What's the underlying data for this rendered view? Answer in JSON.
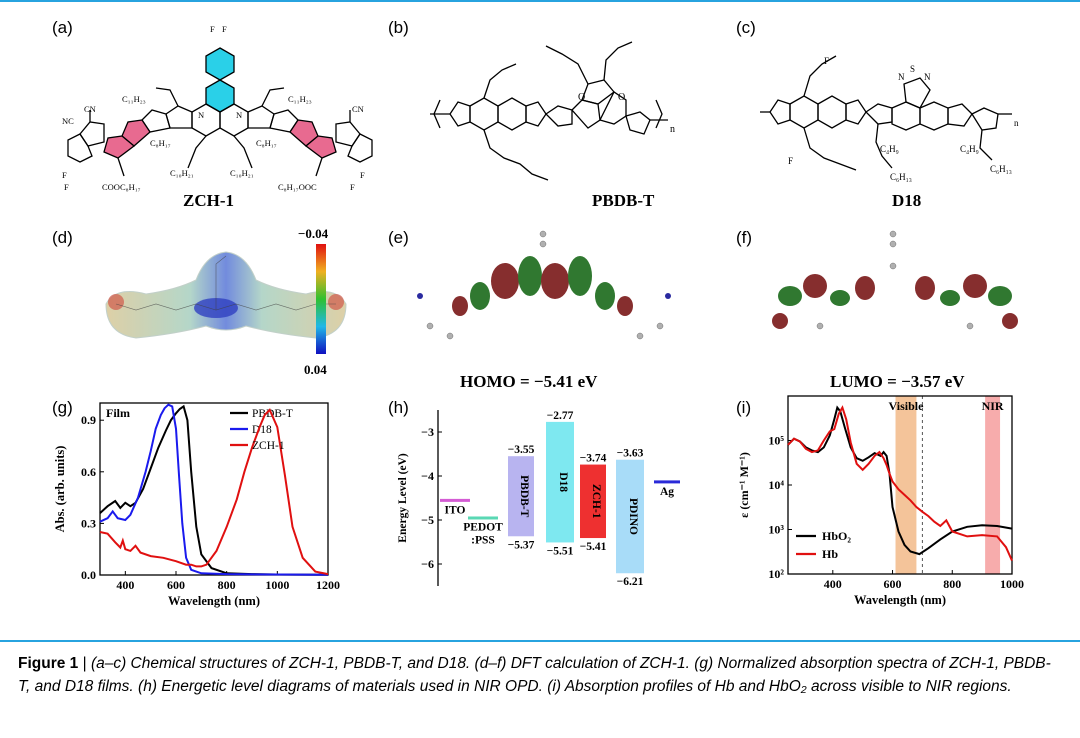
{
  "panels": {
    "a": "(a)",
    "b": "(b)",
    "c": "(c)",
    "d": "(d)",
    "e": "(e)",
    "f": "(f)",
    "g": "(g)",
    "h": "(h)",
    "i": "(i)"
  },
  "structures": {
    "zch1": {
      "name": "ZCH-1",
      "labels": [
        "C11H23",
        "C11H23",
        "C8H17",
        "C10H21",
        "C10H21",
        "C8H17",
        "COOC8H17",
        "C8H17OOC",
        "NC",
        "CN",
        "CN",
        "F",
        "F",
        "F",
        "F",
        "F",
        "F",
        "F",
        "F",
        "O",
        "O",
        "N",
        "N"
      ]
    },
    "pbdbt": {
      "name": "PBDB-T",
      "labels": [
        "n",
        "O",
        "O"
      ]
    },
    "d18": {
      "name": "D18",
      "labels": [
        "n",
        "F",
        "F",
        "C4H9",
        "C6H13",
        "C4H9",
        "C6H13",
        "S",
        "N",
        "N"
      ]
    }
  },
  "dft": {
    "colorbar_top": "−0.04",
    "colorbar_bottom": "0.04",
    "homo_label": "HOMO = −5.41 eV",
    "lumo_label": "LUMO = −3.57 eV"
  },
  "chart_data": [
    {
      "id": "g",
      "type": "line",
      "title": "Film",
      "xlabel": "Wavelength (nm)",
      "ylabel": "Abs. (arb. units)",
      "xlim": [
        300,
        1200
      ],
      "ylim": [
        0.0,
        1.0
      ],
      "xticks": [
        400,
        600,
        800,
        1000,
        1200
      ],
      "yticks": [
        0.0,
        0.3,
        0.6,
        0.9
      ],
      "xtick_labels": [
        "400",
        "600",
        "800",
        "1000",
        "1200"
      ],
      "ytick_labels": [
        "0.0",
        "0.3",
        "0.6",
        "0.9"
      ],
      "legend": "top-right",
      "series": [
        {
          "name": "PBDB-T",
          "color": "#000000",
          "x": [
            300,
            330,
            360,
            380,
            400,
            420,
            440,
            470,
            500,
            530,
            560,
            580,
            600,
            615,
            630,
            645,
            660,
            680,
            700,
            740,
            800,
            900,
            1000,
            1200
          ],
          "y": [
            0.36,
            0.4,
            0.43,
            0.39,
            0.42,
            0.4,
            0.42,
            0.5,
            0.62,
            0.74,
            0.84,
            0.9,
            0.94,
            0.965,
            0.98,
            0.9,
            0.6,
            0.28,
            0.12,
            0.04,
            0.01,
            0.005,
            0.003,
            0.002
          ]
        },
        {
          "name": "D18",
          "color": "#1a1aee",
          "x": [
            300,
            330,
            350,
            370,
            400,
            420,
            450,
            480,
            500,
            520,
            540,
            555,
            570,
            585,
            600,
            612,
            625,
            640,
            660,
            700,
            800,
            1000,
            1200
          ],
          "y": [
            0.31,
            0.33,
            0.37,
            0.33,
            0.32,
            0.35,
            0.45,
            0.6,
            0.72,
            0.85,
            0.93,
            0.97,
            0.99,
            0.98,
            0.85,
            0.58,
            0.3,
            0.1,
            0.03,
            0.01,
            0.005,
            0.003,
            0.002
          ]
        },
        {
          "name": "ZCH-1",
          "color": "#e01010",
          "x": [
            300,
            330,
            360,
            380,
            390,
            400,
            420,
            440,
            460,
            500,
            550,
            600,
            640,
            660,
            680,
            700,
            720,
            760,
            800,
            840,
            870,
            900,
            930,
            950,
            970,
            1000,
            1030,
            1060,
            1100,
            1150,
            1200
          ],
          "y": [
            0.25,
            0.24,
            0.19,
            0.16,
            0.2,
            0.15,
            0.14,
            0.17,
            0.13,
            0.11,
            0.1,
            0.08,
            0.06,
            0.06,
            0.05,
            0.05,
            0.06,
            0.14,
            0.28,
            0.44,
            0.6,
            0.74,
            0.86,
            0.93,
            0.96,
            0.86,
            0.58,
            0.28,
            0.1,
            0.02,
            0.005
          ]
        }
      ]
    },
    {
      "id": "h",
      "type": "bar",
      "ylabel": "Energy Level (eV)",
      "ylim": [
        -6.5,
        -2.5
      ],
      "yticks": [
        -3,
        -4,
        -5,
        -6
      ],
      "ytick_labels": [
        "−3",
        "−4",
        "−5",
        "−6"
      ],
      "levels": [
        {
          "name": "ITO",
          "top": -4.52,
          "bottom": -4.58,
          "color": "#d45cd4",
          "kind": "line",
          "top_label": "",
          "bottom_label": ""
        },
        {
          "name": "PEDOT\n:PSS",
          "top": -4.92,
          "bottom": -4.97,
          "color": "#5ad8b4",
          "kind": "line",
          "top_label": "",
          "bottom_label": ""
        },
        {
          "name": "PBDB-T",
          "top": -3.55,
          "bottom": -5.37,
          "color": "#b8b4f0",
          "kind": "box",
          "top_label": "−3.55",
          "bottom_label": "−5.37"
        },
        {
          "name": "D18",
          "top": -2.77,
          "bottom": -5.51,
          "color": "#7ee8f0",
          "kind": "box",
          "top_label": "−2.77",
          "bottom_label": "−5.51"
        },
        {
          "name": "ZCH-1",
          "top": -3.74,
          "bottom": -5.41,
          "color": "#ee3030",
          "kind": "box",
          "top_label": "−3.74",
          "bottom_label": "−5.41"
        },
        {
          "name": "PDINO",
          "top": -3.63,
          "bottom": -6.21,
          "color": "#a8dcf8",
          "kind": "box",
          "top_label": "−3.63",
          "bottom_label": "−6.21"
        },
        {
          "name": "Ag",
          "top": -4.1,
          "bottom": -4.16,
          "color": "#2a2ad8",
          "kind": "line",
          "top_label": "",
          "bottom_label": ""
        }
      ]
    },
    {
      "id": "i",
      "type": "line",
      "xlabel": "Wavelength (nm)",
      "ylabel": "ε (cm⁻¹ M⁻¹)",
      "xscale": "linear",
      "yscale": "log",
      "xlim": [
        250,
        1000
      ],
      "ylim": [
        100,
        1000000
      ],
      "xticks": [
        400,
        600,
        800,
        1000
      ],
      "xtick_labels": [
        "400",
        "600",
        "800",
        "1000"
      ],
      "yticks": [
        100,
        1000,
        10000,
        100000
      ],
      "ytick_labels": [
        "10²",
        "10³",
        "10⁴",
        "10⁵"
      ],
      "bands": [
        {
          "label": "Visible",
          "from": 610,
          "to": 680,
          "color": "#f0b078"
        },
        {
          "label": "NIR",
          "from": 910,
          "to": 960,
          "color": "#f49090"
        }
      ],
      "dashed_line_x": 700,
      "legend": "bottom-left",
      "series": [
        {
          "name": "HbO₂",
          "color": "#000000",
          "x": [
            250,
            270,
            290,
            310,
            330,
            350,
            370,
            390,
            405,
            415,
            425,
            440,
            460,
            480,
            500,
            520,
            540,
            560,
            570,
            580,
            590,
            600,
            620,
            640,
            660,
            690,
            720,
            760,
            800,
            850,
            900,
            950,
            1000
          ],
          "y": [
            80000,
            110000,
            95000,
            70000,
            60000,
            55000,
            70000,
            130000,
            300000,
            550000,
            450000,
            200000,
            70000,
            40000,
            35000,
            42000,
            52000,
            45000,
            55000,
            45000,
            18000,
            3200,
            900,
            450,
            320,
            280,
            380,
            600,
            900,
            1150,
            1250,
            1200,
            1050
          ]
        },
        {
          "name": "Hb",
          "color": "#e01010",
          "x": [
            250,
            270,
            290,
            310,
            330,
            350,
            370,
            390,
            405,
            420,
            432,
            445,
            460,
            480,
            500,
            520,
            540,
            556,
            570,
            580,
            590,
            600,
            620,
            640,
            660,
            680,
            700,
            720,
            740,
            760,
            780,
            800,
            850,
            900,
            950,
            980,
            1000
          ],
          "y": [
            80000,
            110000,
            95000,
            65000,
            55000,
            60000,
            100000,
            160000,
            180000,
            400000,
            550000,
            300000,
            90000,
            30000,
            22000,
            30000,
            45000,
            55000,
            40000,
            28000,
            18000,
            12000,
            8000,
            6000,
            4500,
            3200,
            2500,
            2000,
            1500,
            1200,
            1600,
            900,
            700,
            750,
            700,
            400,
            200
          ]
        }
      ]
    }
  ],
  "caption": {
    "figure_label": "Figure 1",
    "separator": " | ",
    "text": "(a–c) Chemical structures of ZCH-1, PBDB-T, and D18. (d–f) DFT calculation of ZCH-1. (g) Normalized absorption spectra of ZCH-1, PBDB-T, and D18 films. (h) Energetic level diagrams of materials used in NIR OPD. (i) Absorption profiles of Hb and HbO₂ across visible to NIR regions."
  }
}
